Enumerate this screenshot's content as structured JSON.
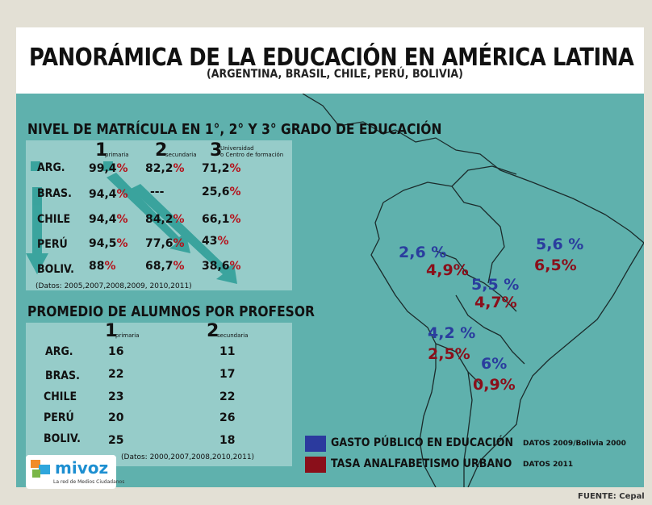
{
  "header": {
    "title": "PANORÁMICA DE LA EDUCACIÓN EN AMÉRICA LATINA",
    "subtitle": "(ARGENTINA, BRASIL, CHILE, PERÚ, BOLIVIA)"
  },
  "enrollment": {
    "title": "NIVEL DE MATRÍCULA EN 1°, 2° Y 3° GRADO DE EDUCACIÓN",
    "col1_num": "1",
    "col1_label": "primaria",
    "col2_num": "2",
    "col2_label": "secundaria",
    "col3_num": "3",
    "col3_label1": "Universidad",
    "col3_label2": "o Centro de formación",
    "pct": "%",
    "rows": [
      {
        "label": "ARG.",
        "v1": "99,4",
        "v2": "82,2",
        "v3": "71,2"
      },
      {
        "label": "BRAS.",
        "v1": "94,4",
        "v2": "---",
        "v3": "25,6"
      },
      {
        "label": "CHILE",
        "v1": "94,4",
        "v2": "84,2",
        "v3": "66,1"
      },
      {
        "label": "PERÚ",
        "v1": "94,5",
        "v2": "77,6",
        "v3": "43"
      },
      {
        "label": "BOLIV.",
        "v1": "88",
        "v2": "68,7",
        "v3": "38,6"
      }
    ],
    "note": "(Datos: 2005,2007,2008,2009, 2010,2011)"
  },
  "ratio": {
    "title": "PROMEDIO DE ALUMNOS POR PROFESOR",
    "col1_num": "1",
    "col1_label": "primaria",
    "col2_num": "2",
    "col2_label": "secundaria",
    "rows": [
      {
        "label": "ARG.",
        "v1": "16",
        "v2": "11"
      },
      {
        "label": "BRAS.",
        "v1": "22",
        "v2": "17"
      },
      {
        "label": "CHILE",
        "v1": "23",
        "v2": "22"
      },
      {
        "label": "PERÚ",
        "v1": "20",
        "v2": "26"
      },
      {
        "label": "BOLIV.",
        "v1": "25",
        "v2": "18"
      }
    ],
    "note": "(Datos: 2000,2007,2008,2010,2011)"
  },
  "map": {
    "peru_spend": "2,6 %",
    "peru_illit": "4,9%",
    "brazil_spend": "5,6 %",
    "brazil_illit": "6,5%",
    "bolivia_spend": "5,5 %",
    "bolivia_illit": "4,7%",
    "chile_spend": "4,2 %",
    "chile_illit": "2,5%",
    "arg_spend": "6%",
    "arg_illit": "0,9%"
  },
  "legend": {
    "spend_label": "GASTO PÚBLICO EN EDUCACIÓN",
    "spend_note": "DATOS 2009/Bolivia 2000",
    "spend_color": "#2b3a9e",
    "illit_label": "TASA ANALFABETISMO URBANO",
    "illit_note": "DATOS 2011",
    "illit_color": "#8a0f1a"
  },
  "logo": {
    "name": "mivoz",
    "tagline": "La red de Medios Ciudadanos"
  },
  "source": "FUENTE: Cepal"
}
